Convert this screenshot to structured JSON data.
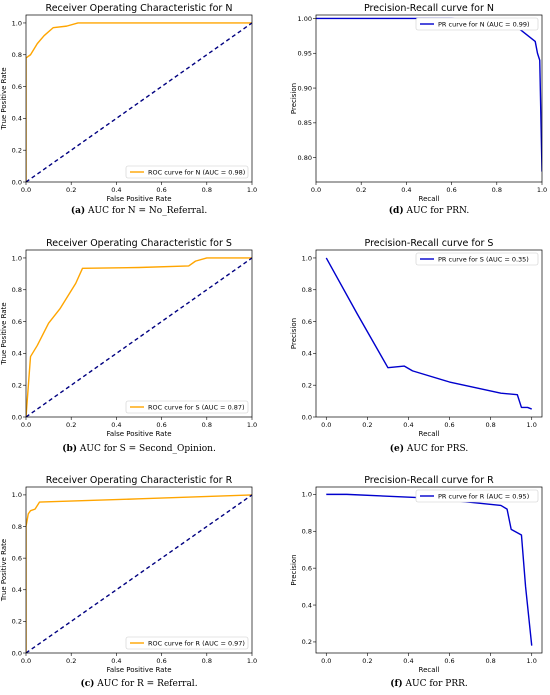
{
  "chart_data": [
    {
      "id": "a",
      "type": "line",
      "title": "Receiver Operating Characteristic for N",
      "xlabel": "False Positive Rate",
      "ylabel": "True Positive Rate",
      "xlim": [
        0,
        1.0
      ],
      "ylim": [
        0,
        1.05
      ],
      "xticks": [
        "0.0",
        "0.2",
        "0.4",
        "0.6",
        "0.8",
        "1.0"
      ],
      "yticks": [
        "0.0",
        "0.2",
        "0.4",
        "0.6",
        "0.8",
        "1.0"
      ],
      "legend": "bottom-right",
      "series": [
        {
          "name": "ROC curve for N (AUC = 0.98)",
          "color": "#FFA500",
          "x": [
            0,
            0,
            0.02,
            0.05,
            0.08,
            0.12,
            0.18,
            0.23,
            0.5,
            1.0
          ],
          "y": [
            0,
            0.78,
            0.8,
            0.87,
            0.92,
            0.97,
            0.98,
            1.0,
            1.0,
            1.0
          ]
        },
        {
          "name": "",
          "color": "#000080",
          "dashed": true,
          "x": [
            0,
            1
          ],
          "y": [
            0,
            1
          ]
        }
      ],
      "caption_label": "(a)",
      "caption_text": "AUC for N = No_Referral."
    },
    {
      "id": "d",
      "type": "line",
      "title": "Precision-Recall curve for N",
      "xlabel": "Recall",
      "ylabel": "Precision",
      "xlim": [
        0,
        1.0
      ],
      "ylim": [
        0.765,
        1.005
      ],
      "xticks": [
        "0.0",
        "0.2",
        "0.4",
        "0.6",
        "0.8",
        "1.0"
      ],
      "yticks": [
        "0.80",
        "0.85",
        "0.90",
        "0.95",
        "1.00"
      ],
      "legend": "top-right",
      "series": [
        {
          "name": "PR curve for N (AUC = 0.99)",
          "color": "#0000CD",
          "x": [
            0,
            0.2,
            0.4,
            0.6,
            0.8,
            0.9,
            0.97,
            0.98,
            0.99,
            1.0
          ],
          "y": [
            1.0,
            1.0,
            1.0,
            1.0,
            0.995,
            0.985,
            0.967,
            0.95,
            0.94,
            0.78
          ]
        }
      ],
      "caption_label": "(d)",
      "caption_text": "AUC for PRN."
    },
    {
      "id": "b",
      "type": "line",
      "title": "Receiver Operating Characteristic for S",
      "xlabel": "False Positive Rate",
      "ylabel": "True Positive Rate",
      "xlim": [
        0,
        1.0
      ],
      "ylim": [
        0,
        1.05
      ],
      "xticks": [
        "0.0",
        "0.2",
        "0.4",
        "0.6",
        "0.8",
        "1.0"
      ],
      "yticks": [
        "0.0",
        "0.2",
        "0.4",
        "0.6",
        "0.8",
        "1.0"
      ],
      "legend": "bottom-right",
      "series": [
        {
          "name": "ROC curve for S (AUC = 0.87)",
          "color": "#FFA500",
          "x": [
            0,
            0.02,
            0.05,
            0.1,
            0.15,
            0.22,
            0.25,
            0.5,
            0.72,
            0.75,
            0.8,
            1.0
          ],
          "y": [
            0,
            0.38,
            0.45,
            0.59,
            0.68,
            0.84,
            0.935,
            0.94,
            0.95,
            0.98,
            1.0,
            1.0
          ]
        },
        {
          "name": "",
          "color": "#000080",
          "dashed": true,
          "x": [
            0,
            1
          ],
          "y": [
            0,
            1
          ]
        }
      ],
      "caption_label": "(b)",
      "caption_text": "AUC for S = Second_Opinion."
    },
    {
      "id": "e",
      "type": "line",
      "title": "Precision-Recall curve for S",
      "xlabel": "Recall",
      "ylabel": "Precision",
      "xlim": [
        -0.05,
        1.05
      ],
      "ylim": [
        0,
        1.05
      ],
      "xticks": [
        "0.0",
        "0.2",
        "0.4",
        "0.6",
        "0.8",
        "1.0"
      ],
      "yticks": [
        "0.0",
        "0.2",
        "0.4",
        "0.6",
        "0.8",
        "1.0"
      ],
      "legend": "top-right",
      "series": [
        {
          "name": "PR curve for S (AUC = 0.35)",
          "color": "#0000CD",
          "x": [
            0,
            0.15,
            0.3,
            0.38,
            0.42,
            0.6,
            0.85,
            0.93,
            0.95,
            0.98,
            1.0
          ],
          "y": [
            1.0,
            0.65,
            0.31,
            0.32,
            0.29,
            0.22,
            0.15,
            0.14,
            0.06,
            0.06,
            0.05
          ]
        }
      ],
      "caption_label": "(e)",
      "caption_text": "AUC for PRS."
    },
    {
      "id": "c",
      "type": "line",
      "title": "Receiver Operating Characteristic for R",
      "xlabel": "False Positive Rate",
      "ylabel": "True Positive Rate",
      "xlim": [
        0,
        1.0
      ],
      "ylim": [
        0,
        1.05
      ],
      "xticks": [
        "0.0",
        "0.2",
        "0.4",
        "0.6",
        "0.8",
        "1.0"
      ],
      "yticks": [
        "0.0",
        "0.2",
        "0.4",
        "0.6",
        "0.8",
        "1.0"
      ],
      "legend": "bottom-right",
      "series": [
        {
          "name": "ROC curve for R (AUC = 0.97)",
          "color": "#FFA500",
          "x": [
            0,
            0,
            0.01,
            0.02,
            0.04,
            0.06,
            0.5,
            1.0
          ],
          "y": [
            0,
            0.8,
            0.88,
            0.9,
            0.91,
            0.955,
            0.975,
            1.0
          ]
        },
        {
          "name": "",
          "color": "#000080",
          "dashed": true,
          "x": [
            0,
            1
          ],
          "y": [
            0,
            1
          ]
        }
      ],
      "caption_label": "(c)",
      "caption_text": "AUC for R = Referral."
    },
    {
      "id": "f",
      "type": "line",
      "title": "Precision-Recall curve for R",
      "xlabel": "Recall",
      "ylabel": "Precision",
      "xlim": [
        -0.05,
        1.05
      ],
      "ylim": [
        0.14,
        1.04
      ],
      "xticks": [
        "0.0",
        "0.2",
        "0.4",
        "0.6",
        "0.8",
        "1.0"
      ],
      "yticks": [
        "0.2",
        "0.4",
        "0.6",
        "0.8",
        "1.0"
      ],
      "legend": "top-right",
      "series": [
        {
          "name": "PR curve for R (AUC = 0.95)",
          "color": "#0000CD",
          "x": [
            0,
            0.1,
            0.5,
            0.85,
            0.88,
            0.9,
            0.95,
            0.97,
            1.0
          ],
          "y": [
            1.0,
            1.0,
            0.98,
            0.94,
            0.92,
            0.81,
            0.78,
            0.5,
            0.18
          ]
        }
      ],
      "caption_label": "(f)",
      "caption_text": "AUC for PRR."
    }
  ]
}
